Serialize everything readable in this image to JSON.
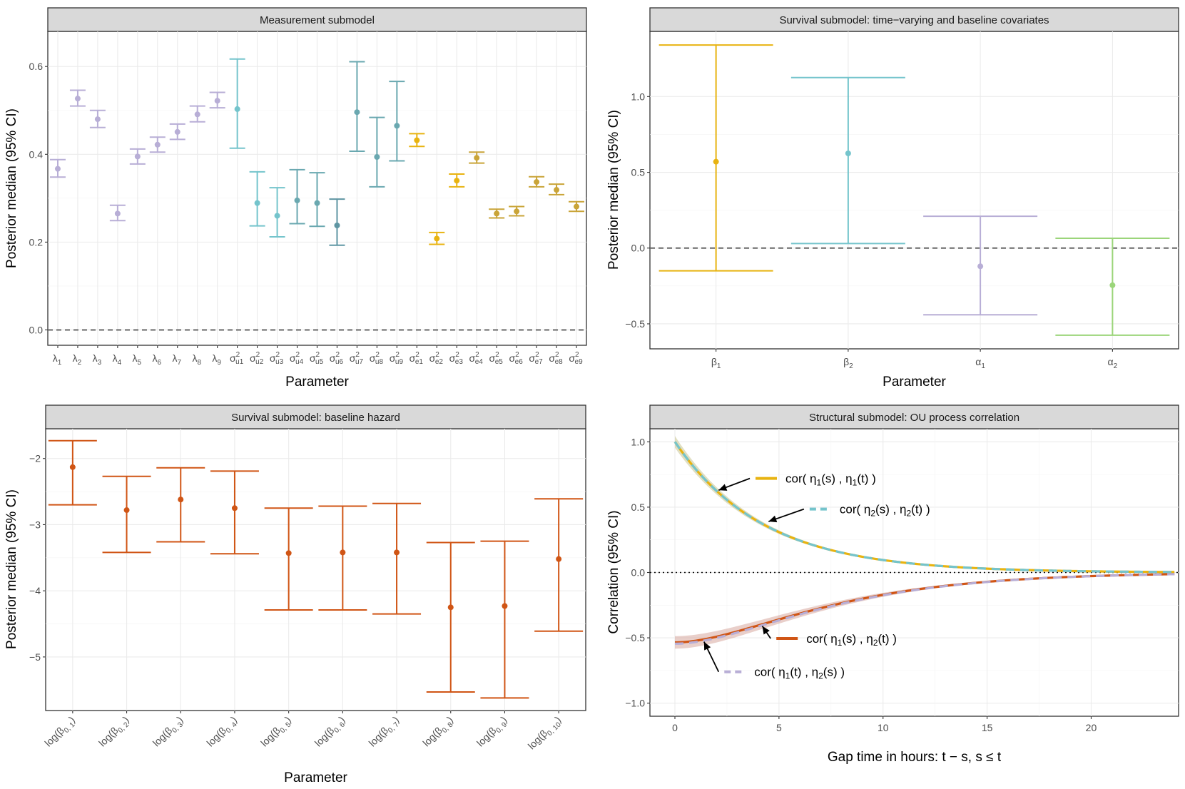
{
  "colors": {
    "lambda": "#b8aed6",
    "sigma_u": [
      "#74c4cc",
      "#74c4cc",
      "#74c4cc",
      "#6aa8b0",
      "#6aa8b0",
      "#5f96a3",
      "#6aa8b0",
      "#6aa8b0",
      "#6aa8b0"
    ],
    "sigma_e": [
      "#e8b310",
      "#e8b310",
      "#e8b310",
      "#c9a438",
      "#c9a438",
      "#c9a438",
      "#c9a438",
      "#c9a438",
      "#c9a438"
    ],
    "baseline": "#d05515",
    "beta1": "#e8b310",
    "beta2": "#74c4cc",
    "alpha1": "#b8aed6",
    "alpha2": "#9bd57a",
    "cor11": "#e8b310",
    "cor22": "#74c4cc",
    "cor12": "#d05515",
    "cor21": "#b8aed6",
    "ribbon1": "#c8c48f",
    "ribbon2": "#d7a89f"
  },
  "chart_data": [
    {
      "type": "errorbar",
      "title": "Measurement submodel",
      "xlabel": "Parameter",
      "ylabel": "Posterior median (95% CI)",
      "ylim": [
        -0.035,
        0.68
      ],
      "yticks": [
        0.0,
        0.2,
        0.4,
        0.6
      ],
      "yticklabels": [
        "0.0",
        "0.2",
        "0.4",
        "0.6"
      ],
      "reference_line": 0.0,
      "labels": [
        {
          "base": "λ",
          "sub": "1",
          "super": ""
        },
        {
          "base": "λ",
          "sub": "2",
          "super": ""
        },
        {
          "base": "λ",
          "sub": "3",
          "super": ""
        },
        {
          "base": "λ",
          "sub": "4",
          "super": ""
        },
        {
          "base": "λ",
          "sub": "5",
          "super": ""
        },
        {
          "base": "λ",
          "sub": "6",
          "super": ""
        },
        {
          "base": "λ",
          "sub": "7",
          "super": ""
        },
        {
          "base": "λ",
          "sub": "8",
          "super": ""
        },
        {
          "base": "λ",
          "sub": "9",
          "super": ""
        },
        {
          "base": "σ",
          "sub": "u1",
          "super": "2"
        },
        {
          "base": "σ",
          "sub": "u2",
          "super": "2"
        },
        {
          "base": "σ",
          "sub": "u3",
          "super": "2"
        },
        {
          "base": "σ",
          "sub": "u4",
          "super": "2"
        },
        {
          "base": "σ",
          "sub": "u5",
          "super": "2"
        },
        {
          "base": "σ",
          "sub": "u6",
          "super": "2"
        },
        {
          "base": "σ",
          "sub": "u7",
          "super": "2"
        },
        {
          "base": "σ",
          "sub": "u8",
          "super": "2"
        },
        {
          "base": "σ",
          "sub": "u9",
          "super": "2"
        },
        {
          "base": "σ",
          "sub": "e1",
          "super": "2"
        },
        {
          "base": "σ",
          "sub": "e2",
          "super": "2"
        },
        {
          "base": "σ",
          "sub": "e3",
          "super": "2"
        },
        {
          "base": "σ",
          "sub": "e4",
          "super": "2"
        },
        {
          "base": "σ",
          "sub": "e5",
          "super": "2"
        },
        {
          "base": "σ",
          "sub": "e6",
          "super": "2"
        },
        {
          "base": "σ",
          "sub": "e7",
          "super": "2"
        },
        {
          "base": "σ",
          "sub": "e8",
          "super": "2"
        },
        {
          "base": "σ",
          "sub": "e9",
          "super": "2"
        }
      ],
      "median": [
        0.367,
        0.527,
        0.48,
        0.265,
        0.395,
        0.422,
        0.451,
        0.491,
        0.522,
        0.503,
        0.289,
        0.26,
        0.295,
        0.289,
        0.238,
        0.496,
        0.394,
        0.465,
        0.432,
        0.208,
        0.34,
        0.392,
        0.265,
        0.27,
        0.337,
        0.319,
        0.281
      ],
      "lower": [
        0.348,
        0.51,
        0.461,
        0.249,
        0.378,
        0.405,
        0.434,
        0.474,
        0.506,
        0.414,
        0.237,
        0.212,
        0.242,
        0.236,
        0.193,
        0.407,
        0.326,
        0.385,
        0.418,
        0.195,
        0.326,
        0.38,
        0.255,
        0.26,
        0.326,
        0.308,
        0.27
      ],
      "upper": [
        0.388,
        0.546,
        0.5,
        0.284,
        0.412,
        0.439,
        0.469,
        0.51,
        0.541,
        0.617,
        0.36,
        0.324,
        0.365,
        0.358,
        0.298,
        0.611,
        0.484,
        0.566,
        0.447,
        0.222,
        0.355,
        0.405,
        0.275,
        0.281,
        0.349,
        0.332,
        0.292
      ],
      "color_groups": [
        "lambda",
        "lambda",
        "lambda",
        "lambda",
        "lambda",
        "lambda",
        "lambda",
        "lambda",
        "lambda",
        "sigma_u0",
        "sigma_u1",
        "sigma_u2",
        "sigma_u3",
        "sigma_u4",
        "sigma_u5",
        "sigma_u6",
        "sigma_u7",
        "sigma_u8",
        "sigma_e0",
        "sigma_e1",
        "sigma_e2",
        "sigma_e3",
        "sigma_e4",
        "sigma_e5",
        "sigma_e6",
        "sigma_e7",
        "sigma_e8"
      ]
    },
    {
      "type": "errorbar",
      "title": "Survival submodel: time−varying and baseline covariates",
      "xlabel": "Parameter",
      "ylabel": "Posterior median (95% CI)",
      "ylim": [
        -0.665,
        1.43
      ],
      "yticks": [
        -0.5,
        0.0,
        0.5,
        1.0
      ],
      "yticklabels": [
        "−0.5",
        "0.0",
        "0.5",
        "1.0"
      ],
      "reference_line": 0.0,
      "labels": [
        {
          "base": "β",
          "sub": "1",
          "super": ""
        },
        {
          "base": "β",
          "sub": "2",
          "super": ""
        },
        {
          "base": "α",
          "sub": "1",
          "super": ""
        },
        {
          "base": "α",
          "sub": "2",
          "super": ""
        }
      ],
      "median": [
        0.57,
        0.625,
        -0.12,
        -0.245
      ],
      "lower": [
        -0.15,
        0.03,
        -0.44,
        -0.575
      ],
      "upper": [
        1.34,
        1.125,
        0.21,
        0.065
      ],
      "color_keys": [
        "beta1",
        "beta2",
        "alpha1",
        "alpha2"
      ]
    },
    {
      "type": "errorbar",
      "title": "Survival submodel: baseline hazard",
      "xlabel": "Parameter",
      "ylabel": "Posterior median (95% CI)",
      "ylim": [
        -5.81,
        -1.55
      ],
      "yticks": [
        -5,
        -4,
        -3,
        -2
      ],
      "yticklabels": [
        "−5",
        "−4",
        "−3",
        "−2"
      ],
      "labels": [
        {
          "base": "log(β",
          "sub": "0, 1",
          "tail": ")"
        },
        {
          "base": "log(β",
          "sub": "0, 2",
          "tail": ")"
        },
        {
          "base": "log(β",
          "sub": "0, 3",
          "tail": ")"
        },
        {
          "base": "log(β",
          "sub": "0, 4",
          "tail": ")"
        },
        {
          "base": "log(β",
          "sub": "0, 5",
          "tail": ")"
        },
        {
          "base": "log(β",
          "sub": "0, 6",
          "tail": ")"
        },
        {
          "base": "log(β",
          "sub": "0, 7",
          "tail": ")"
        },
        {
          "base": "log(β",
          "sub": "0, 8",
          "tail": ")"
        },
        {
          "base": "log(β",
          "sub": "0, 9",
          "tail": ")"
        },
        {
          "base": "log(β",
          "sub": "0, 10",
          "tail": ")"
        }
      ],
      "median": [
        -2.13,
        -2.78,
        -2.62,
        -2.75,
        -3.43,
        -3.42,
        -3.42,
        -4.25,
        -4.23,
        -3.52
      ],
      "lower": [
        -2.7,
        -3.42,
        -3.26,
        -3.44,
        -4.29,
        -4.29,
        -4.35,
        -5.53,
        -5.62,
        -4.61
      ],
      "upper": [
        -1.73,
        -2.27,
        -2.14,
        -2.19,
        -2.75,
        -2.72,
        -2.68,
        -3.27,
        -3.25,
        -2.61
      ]
    },
    {
      "type": "line",
      "title": "Structural submodel: OU process correlation",
      "xlabel": "Gap time in hours: t − s, s ≤ t",
      "ylabel": "Correlation (95% CI)",
      "xlim": [
        -1.2,
        24.2
      ],
      "ylim": [
        -1.1,
        1.1
      ],
      "xticks": [
        0,
        5,
        10,
        15,
        20
      ],
      "xticklabels": [
        "0",
        "5",
        "10",
        "15",
        "20"
      ],
      "yticks": [
        -1.0,
        -0.5,
        0.0,
        0.5,
        1.0
      ],
      "yticklabels": [
        "−1.0",
        "−0.5",
        "0.0",
        "0.5",
        "1.0"
      ],
      "reference_line": 0.0,
      "series": [
        {
          "name": "cor( η1(s) , η1(t) )",
          "label_parts": [
            "cor( η",
            "1",
            "(s) , η",
            "1",
            "(t) )"
          ],
          "model": "decay",
          "y0": 1.0,
          "rate": 0.235,
          "band": 0.045,
          "color_key": "cor11",
          "ribbon_key": "ribbon1",
          "dash": "solid"
        },
        {
          "name": "cor( η2(s) , η2(t) )",
          "label_parts": [
            "cor( η",
            "2",
            "(s) , η",
            "2",
            "(t) )"
          ],
          "model": "decay",
          "y0": 1.0,
          "rate": 0.235,
          "band": 0.0,
          "color_key": "cor22",
          "ribbon_key": "",
          "dash": "dashed"
        },
        {
          "name": "cor( η1(s) , η2(t) )",
          "label_parts": [
            "cor( η",
            "1",
            "(s) , η",
            "2",
            "(t) )"
          ],
          "model": "sigmoid",
          "y0": -0.535,
          "rate": 0.235,
          "band": 0.03,
          "color_key": "cor12",
          "ribbon_key": "ribbon2",
          "dash": "solid"
        },
        {
          "name": "cor( η1(t) , η2(s) )",
          "label_parts": [
            "cor( η",
            "1",
            "(t) , η",
            "2",
            "(s) )"
          ],
          "model": "sigmoid",
          "y0": -0.545,
          "rate": 0.235,
          "band": 0.0,
          "color_key": "cor21",
          "ribbon_key": "",
          "dash": "dashed"
        }
      ],
      "annotations": [
        {
          "series": 0,
          "arrow_from": [
            3.6,
            0.72
          ],
          "arrow_to": [
            2.1,
            0.63
          ],
          "label_at": [
            3.6,
            0.72
          ]
        },
        {
          "series": 1,
          "arrow_from": [
            6.2,
            0.485
          ],
          "arrow_to": [
            4.5,
            0.39
          ],
          "label_at": [
            6.2,
            0.485
          ]
        },
        {
          "series": 2,
          "arrow_from": [
            4.6,
            -0.505
          ],
          "arrow_to": [
            4.2,
            -0.41
          ],
          "label_at": [
            4.6,
            -0.505
          ]
        },
        {
          "series": 3,
          "arrow_from": [
            2.1,
            -0.76
          ],
          "arrow_to": [
            1.4,
            -0.53
          ],
          "label_at": [
            2.1,
            -0.76
          ]
        }
      ]
    }
  ]
}
